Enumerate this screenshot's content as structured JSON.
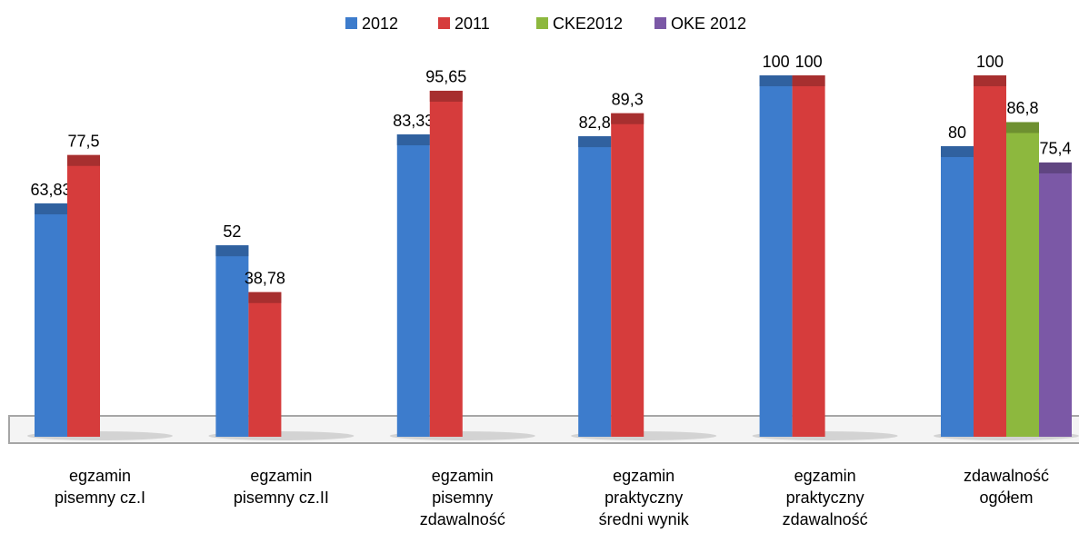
{
  "chart_data": {
    "type": "bar",
    "categories": [
      "egzamin\npisemny cz.I",
      "egzamin\npisemny cz.II",
      "egzamin\npisemny\nzdawalność",
      "egzamin\npraktyczny\nśredni wynik",
      "egzamin\npraktyczny\nzdawalność",
      "zdawalność\nogółem"
    ],
    "series": [
      {
        "name": "2012",
        "color": "#3d7ccc",
        "values": [
          63.83,
          52,
          83.33,
          82.8,
          100,
          80
        ],
        "value_labels": [
          "63,83",
          "52",
          "83,33",
          "82,8",
          "100",
          "80"
        ]
      },
      {
        "name": "2011",
        "color": "#d63c3c",
        "values": [
          77.5,
          38.78,
          95.65,
          89.3,
          100,
          100
        ],
        "value_labels": [
          "77,5",
          "38,78",
          "95,65",
          "89,3",
          "100",
          "100"
        ]
      },
      {
        "name": "CKE2012",
        "color": "#8db83e",
        "values": [
          null,
          null,
          null,
          null,
          null,
          86.8
        ],
        "value_labels": [
          null,
          null,
          null,
          null,
          null,
          "86,8"
        ]
      },
      {
        "name": "OKE 2012",
        "color": "#7b58a6",
        "values": [
          null,
          null,
          null,
          null,
          null,
          75.4
        ],
        "value_labels": [
          null,
          null,
          null,
          null,
          null,
          "75,4"
        ]
      }
    ],
    "ylim": [
      0,
      100
    ],
    "legend": "top"
  }
}
